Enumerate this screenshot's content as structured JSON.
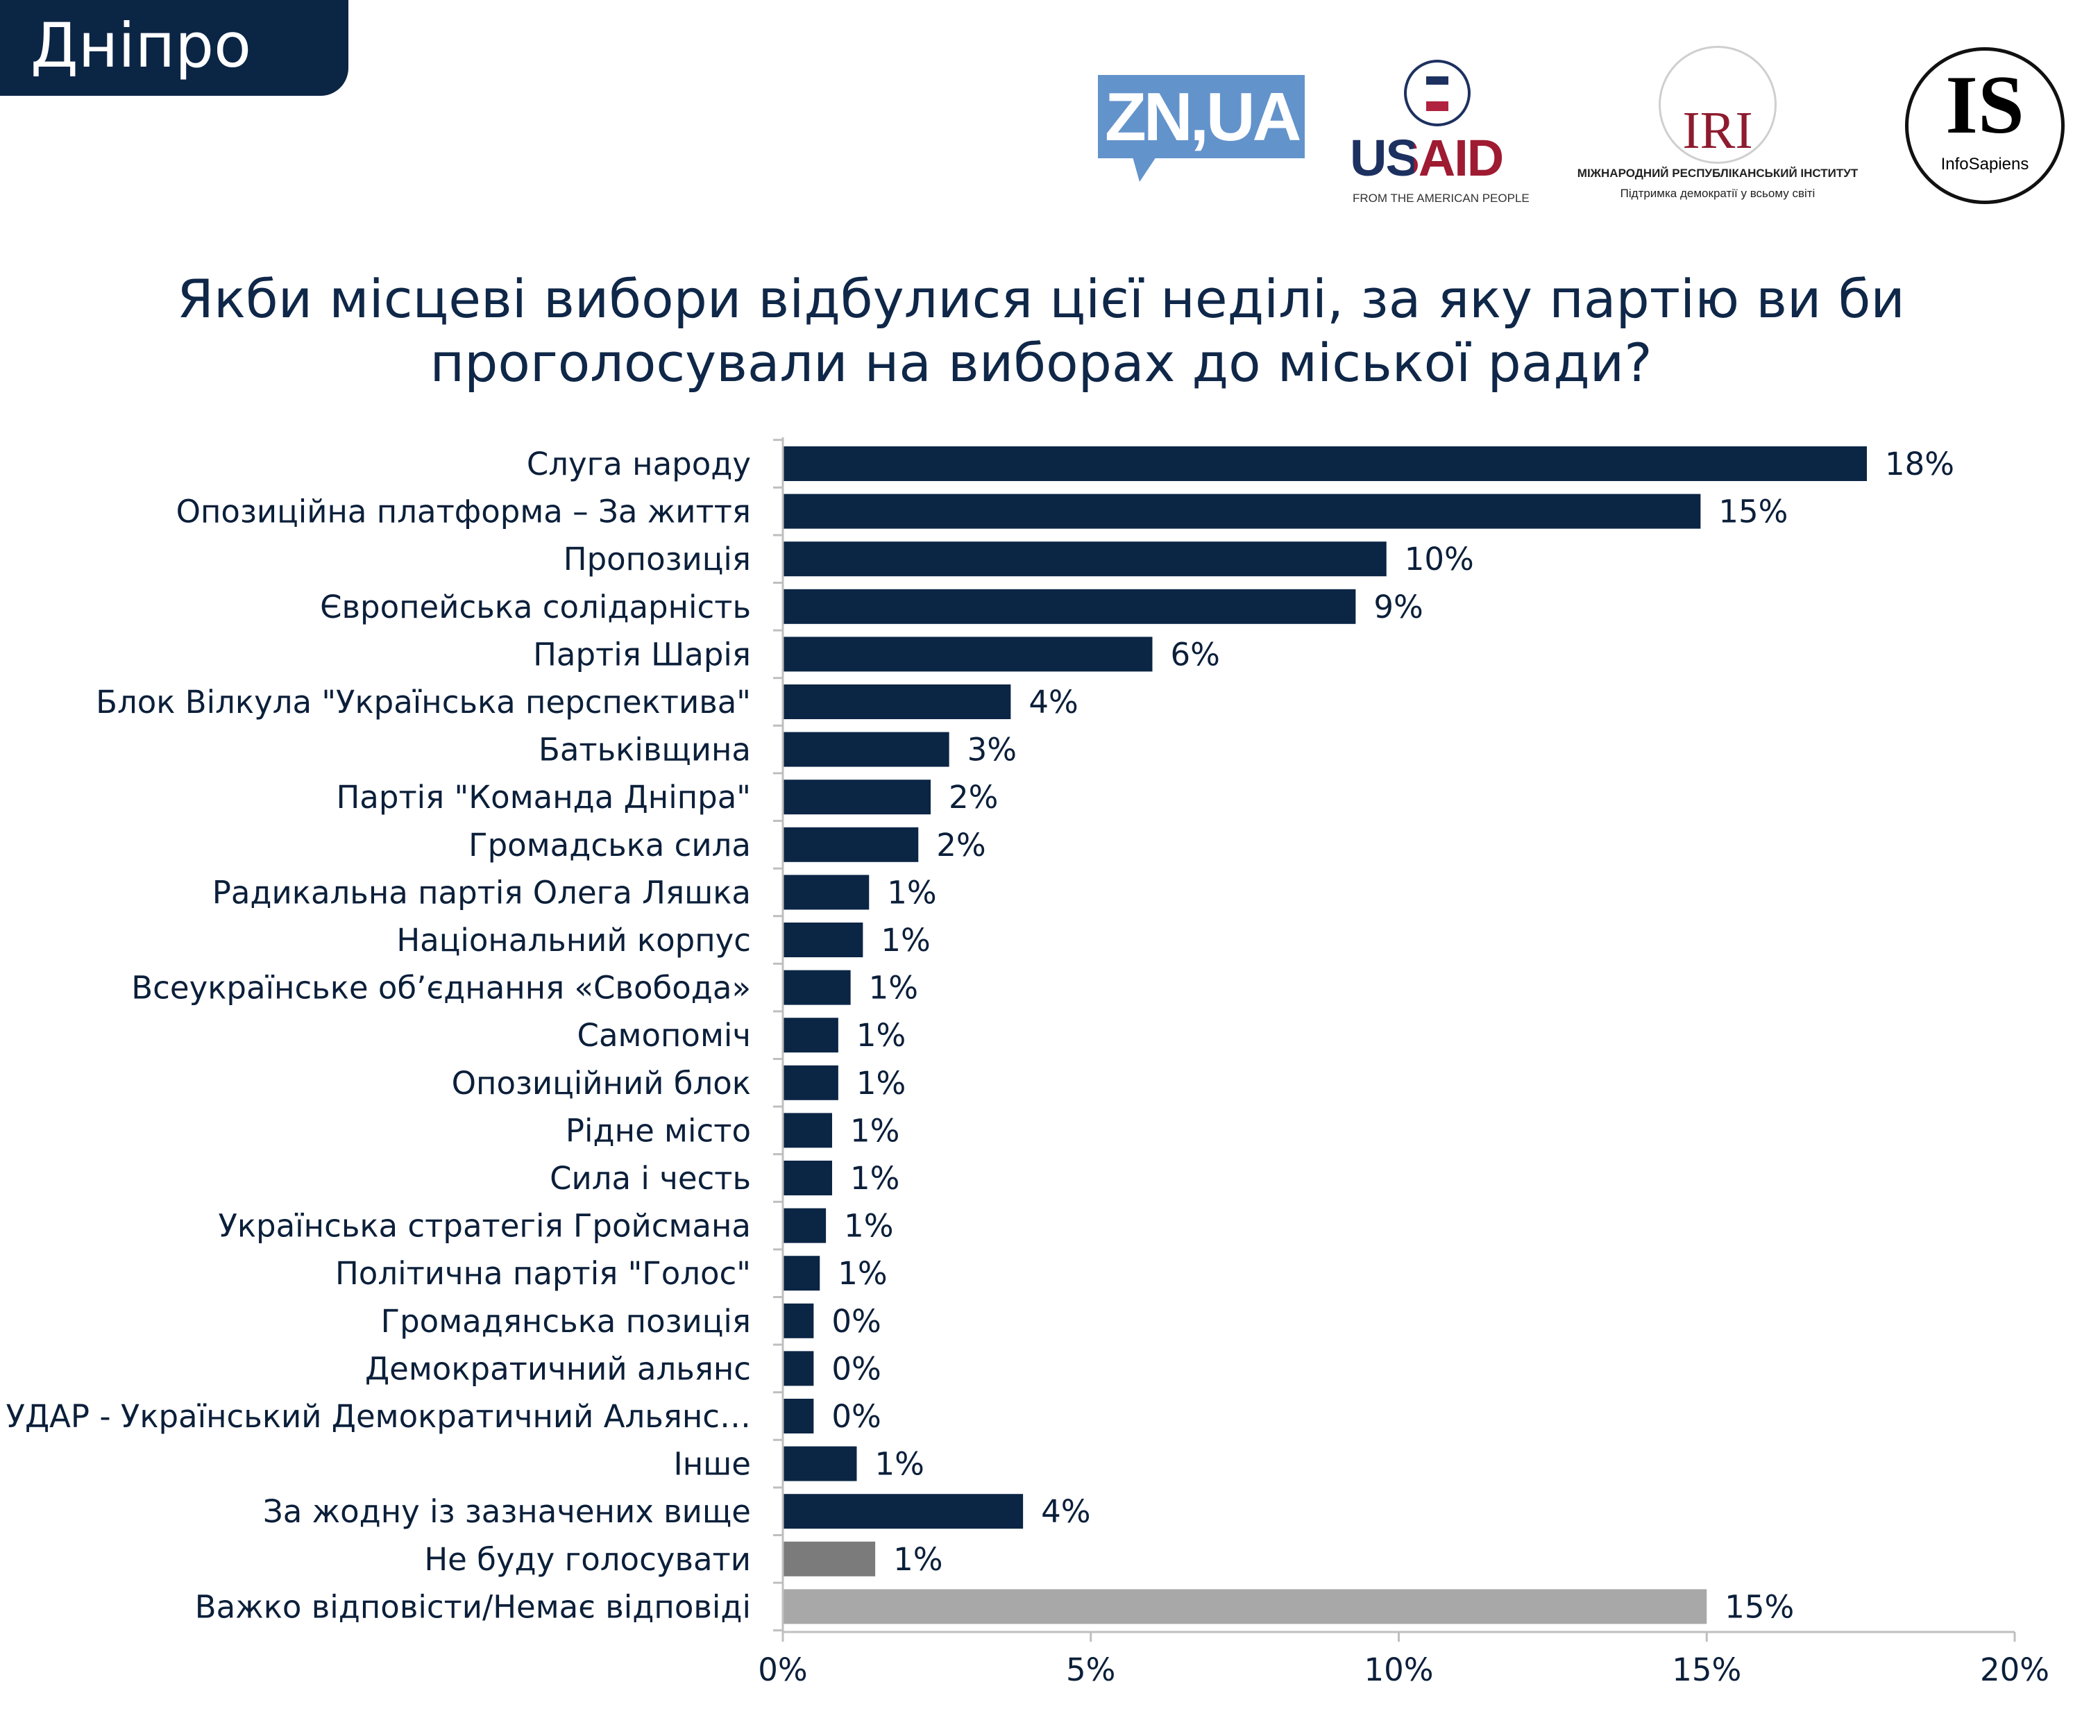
{
  "header": {
    "city": "Дніпро"
  },
  "logos": {
    "zn": "ZN,UA",
    "usaid": "USAID",
    "usaid_sub": "FROM THE AMERICAN PEOPLE",
    "iri": "IRI",
    "iri_name": "МІЖНАРОДНИЙ РЕСПУБЛІКАНСЬКИЙ ІНСТИТУТ",
    "iri_sub": "Підтримка демократії у всьому світі",
    "is": "IS",
    "is_sub": "InfoSapiens"
  },
  "chart_data": {
    "type": "bar",
    "orientation": "horizontal",
    "title_line1": "Якби місцеві вибори відбулися цієї неділі, за яку партію ви би",
    "title_line2": "проголосували на виборах до міської ради?",
    "categories": [
      "Слуга народу",
      "Опозиційна платформа – За життя",
      "Пропозиція",
      "Європейська солідарність",
      "Партія Шарія",
      "Блок Вілкула \"Українська перспектива\"",
      "Батьківщина",
      "Партія \"Команда Дніпра\"",
      "Громадська сила",
      "Радикальна партія Олега Ляшка",
      "Національний корпус",
      "Всеукраїнське об’єднання «Свобода»",
      "Самопоміч",
      "Опозиційний блок",
      "Рідне місто",
      "Сила і честь",
      "Українська стратегія Гройсмана",
      "Політична партія \"Голос\"",
      "Громадянська позиція",
      "Демократичний альянс",
      "УДАР - Український Демократичний Альянс…",
      "Інше",
      "За жодну із зазначених вище",
      "Не буду голосувати",
      "Важко відповісти/Немає відповіді"
    ],
    "values": [
      17.6,
      14.9,
      9.8,
      9.3,
      6.0,
      3.7,
      2.7,
      2.4,
      2.2,
      1.4,
      1.3,
      1.1,
      0.9,
      0.9,
      0.8,
      0.8,
      0.7,
      0.6,
      0.5,
      0.5,
      0.5,
      1.2,
      3.9,
      1.5,
      15.0
    ],
    "labels": [
      "18%",
      "15%",
      "10%",
      "9%",
      "6%",
      "4%",
      "3%",
      "2%",
      "2%",
      "1%",
      "1%",
      "1%",
      "1%",
      "1%",
      "1%",
      "1%",
      "1%",
      "1%",
      "0%",
      "0%",
      "0%",
      "1%",
      "4%",
      "1%",
      "15%"
    ],
    "colors": [
      "#0b2545",
      "#0b2545",
      "#0b2545",
      "#0b2545",
      "#0b2545",
      "#0b2545",
      "#0b2545",
      "#0b2545",
      "#0b2545",
      "#0b2545",
      "#0b2545",
      "#0b2545",
      "#0b2545",
      "#0b2545",
      "#0b2545",
      "#0b2545",
      "#0b2545",
      "#0b2545",
      "#0b2545",
      "#0b2545",
      "#0b2545",
      "#0b2545",
      "#0b2545",
      "#7b7b7b",
      "#a8a8a8"
    ],
    "xlim": [
      0,
      20
    ],
    "xticks": [
      0,
      5,
      10,
      15,
      20
    ],
    "xtick_labels": [
      "0%",
      "5%",
      "10%",
      "15%",
      "20%"
    ],
    "grid": false
  }
}
